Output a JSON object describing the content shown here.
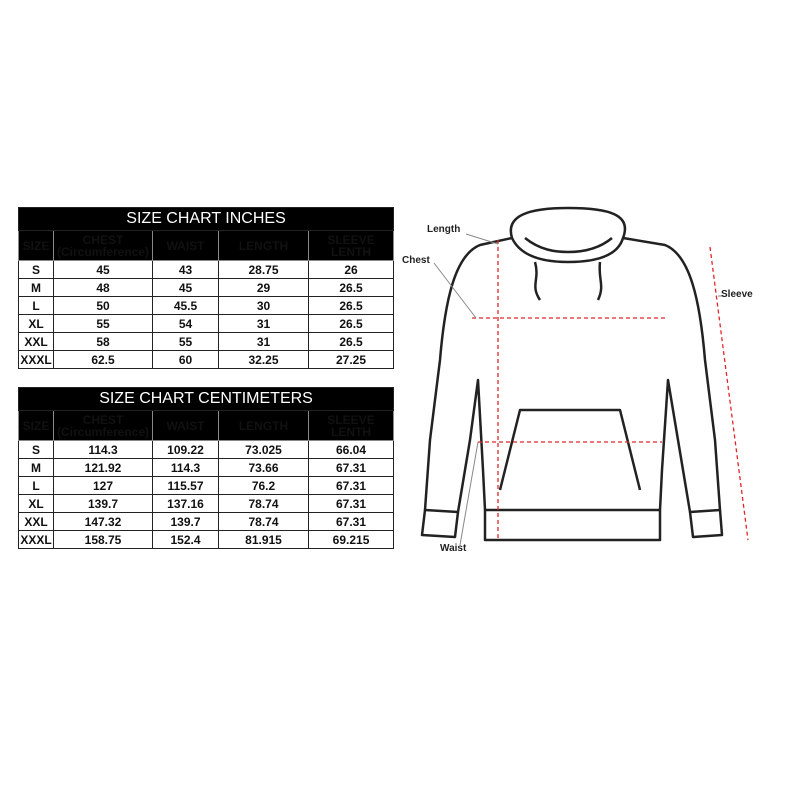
{
  "inches": {
    "title": "SIZE CHART INCHES",
    "headers": [
      "SIZE",
      "CHEST",
      "(Circumference)",
      "WAIST",
      "LENGTH",
      "SLEEVE LENTH"
    ],
    "rows": [
      [
        "S",
        "45",
        "43",
        "28.75",
        "26"
      ],
      [
        "M",
        "48",
        "45",
        "29",
        "26.5"
      ],
      [
        "L",
        "50",
        "45.5",
        "30",
        "26.5"
      ],
      [
        "XL",
        "55",
        "54",
        "31",
        "26.5"
      ],
      [
        "XXL",
        "58",
        "55",
        "31",
        "26.5"
      ],
      [
        "XXXL",
        "62.5",
        "60",
        "32.25",
        "27.25"
      ]
    ]
  },
  "centimeters": {
    "title": "SIZE CHART CENTIMETERS",
    "headers": [
      "SIZE",
      "CHEST",
      "(Circumference)",
      "WAIST",
      "LENGTH",
      "SLEEVE LENTH"
    ],
    "rows": [
      [
        "S",
        "114.3",
        "109.22",
        "73.025",
        "66.04"
      ],
      [
        "M",
        "121.92",
        "114.3",
        "73.66",
        "67.31"
      ],
      [
        "L",
        "127",
        "115.57",
        "76.2",
        "67.31"
      ],
      [
        "XL",
        "139.7",
        "137.16",
        "78.74",
        "67.31"
      ],
      [
        "XXL",
        "147.32",
        "139.7",
        "78.74",
        "67.31"
      ],
      [
        "XXXL",
        "158.75",
        "152.4",
        "81.915",
        "69.215"
      ]
    ]
  },
  "diagram": {
    "length": "Length",
    "chest": "Chest",
    "sleeve": "Sleeve",
    "waist": "Waist",
    "measure_color": "#e0262b"
  }
}
